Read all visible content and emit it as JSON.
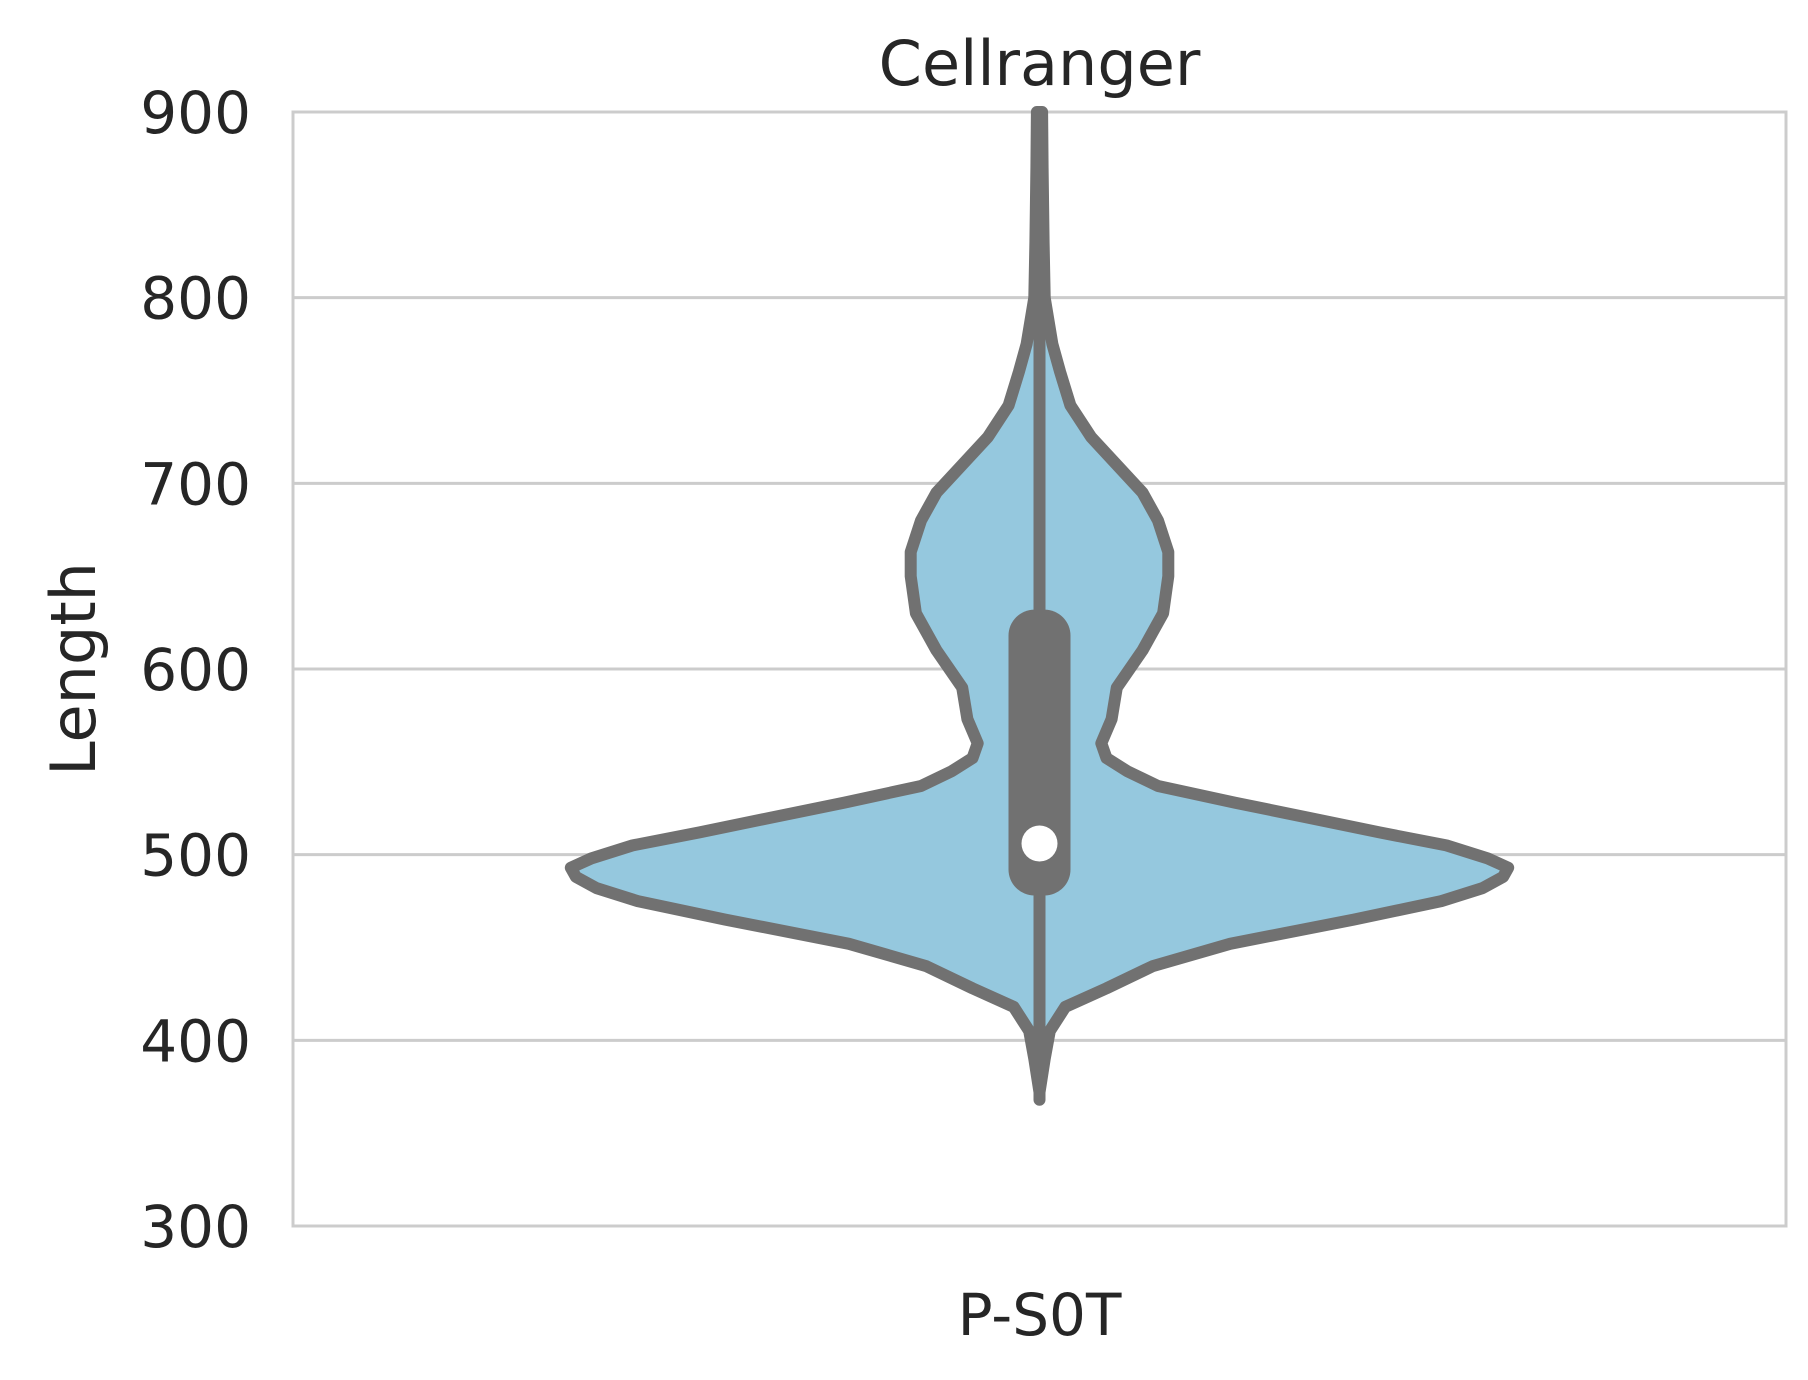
{
  "chart_data": {
    "type": "violin",
    "title": "Cellranger",
    "xlabel": "",
    "ylabel": "Length",
    "categories": [
      "P-S0T"
    ],
    "ylim": [
      300,
      900
    ],
    "yticks": [
      300,
      400,
      500,
      600,
      700,
      800,
      900
    ],
    "grid": "horizontal",
    "colors": {
      "fill": "#95c8de",
      "outline": "#717171",
      "median": "#ffffff",
      "grid": "#cccccc",
      "text": "#262626"
    },
    "series": [
      {
        "category": "P-S0T",
        "min": 368,
        "q1": 478,
        "median": 506,
        "q3": 632,
        "max": 900,
        "density_profile": [
          [
            372,
            0.0
          ],
          [
            390,
            0.01
          ],
          [
            405,
            0.02
          ],
          [
            418,
            0.05
          ],
          [
            428,
            0.13
          ],
          [
            440,
            0.22
          ],
          [
            452,
            0.37
          ],
          [
            465,
            0.61
          ],
          [
            475,
            0.78
          ],
          [
            482,
            0.86
          ],
          [
            488,
            0.9
          ],
          [
            493,
            0.91
          ],
          [
            498,
            0.87
          ],
          [
            505,
            0.79
          ],
          [
            512,
            0.66
          ],
          [
            520,
            0.52
          ],
          [
            528,
            0.38
          ],
          [
            537,
            0.23
          ],
          [
            545,
            0.17
          ],
          [
            552,
            0.13
          ],
          [
            560,
            0.12
          ],
          [
            573,
            0.14
          ],
          [
            590,
            0.15
          ],
          [
            610,
            0.2
          ],
          [
            630,
            0.24
          ],
          [
            650,
            0.25
          ],
          [
            663,
            0.25
          ],
          [
            680,
            0.23
          ],
          [
            695,
            0.2
          ],
          [
            710,
            0.15
          ],
          [
            725,
            0.1
          ],
          [
            742,
            0.06
          ],
          [
            760,
            0.04
          ],
          [
            775,
            0.025
          ],
          [
            800,
            0.01
          ],
          [
            830,
            0.008
          ],
          [
            870,
            0.006
          ],
          [
            900,
            0.005
          ]
        ]
      }
    ]
  }
}
